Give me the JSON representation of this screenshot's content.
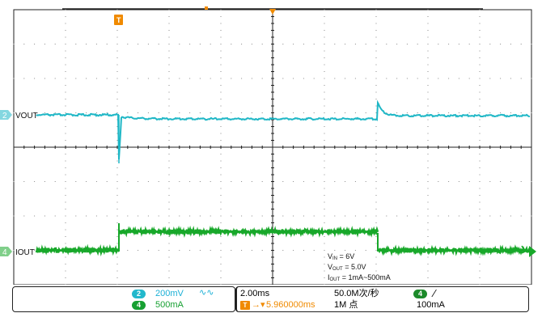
{
  "channels": {
    "ch2": {
      "marker": "2",
      "label": "VOUT",
      "color": "#1fb7c6"
    },
    "ch4": {
      "marker": "4",
      "label": "IOUT",
      "color": "#18a82a"
    }
  },
  "trigger": {
    "marker": "T",
    "color": "#f08a00"
  },
  "conditions": {
    "vin": {
      "sym": "V",
      "sub": "IN",
      "value": " = 6V"
    },
    "vout": {
      "sym": "V",
      "sub": "OUT",
      "value": " = 5.0V"
    },
    "iout": {
      "sym": "I",
      "sub": "OUT",
      "value": " = 1mA~500mA"
    }
  },
  "status": {
    "ch2_badge": "2",
    "ch2_scale": "200mV",
    "ch2_coupling": "∿∿",
    "ch4_badge": "4",
    "ch4_scale": "500mA",
    "timebase": "2.00ms",
    "trigger_offset": "5.960000ms",
    "sample_rate": "50.0M次/秒",
    "record_length": "1M 点",
    "trig_source_badge": "4",
    "trig_slope": "⁄",
    "trig_level": "100mA"
  },
  "colors": {
    "grid": "#202020",
    "grid_dots": "#8a8a8a",
    "vout_trace": "#1fb7c6",
    "iout_trace": "#18a82a",
    "trigger": "#f08a00"
  }
}
